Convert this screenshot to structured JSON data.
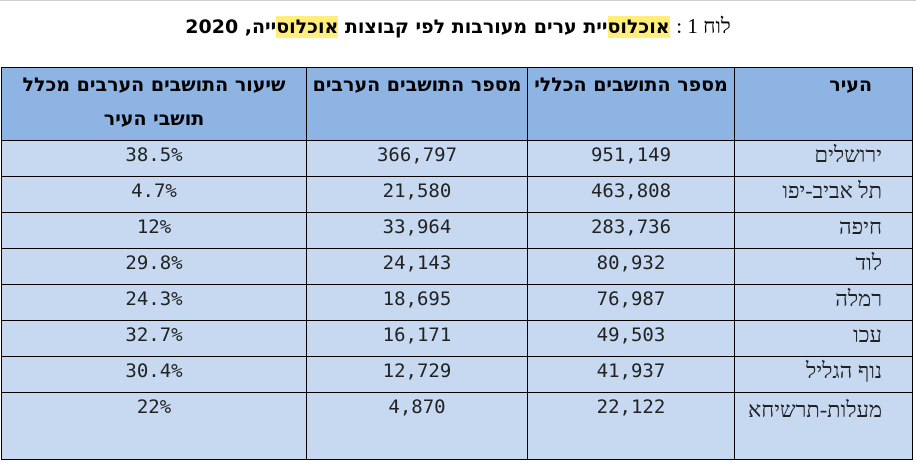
{
  "caption": {
    "label": "לוח 1 :",
    "word1_highlight": "אוכלוס",
    "word1_rest": "יית ערים מעורבות לפי קבוצות ",
    "word2_highlight": "אוכלוס",
    "word2_rest": "ייה, 2020",
    "highlight_color": "#ffef7a"
  },
  "table": {
    "headers": {
      "city": "העיר",
      "total": "מספר התושבים הכללי",
      "arab": "מספר התושבים הערבים",
      "rate": "שיעור התושבים הערבים מכלל תושבי העיר"
    },
    "rows": [
      {
        "city": "ירושלים",
        "total": "951,149",
        "arab": "366,797",
        "rate": "38.5%"
      },
      {
        "city": "תל אביב-יפו",
        "total": "463,808",
        "arab": "21,580",
        "rate": "4.7%"
      },
      {
        "city": "חיפה",
        "total": "283,736",
        "arab": "33,964",
        "rate": "12%"
      },
      {
        "city": "לוד",
        "total": "80,932",
        "arab": "24,143",
        "rate": "29.8%"
      },
      {
        "city": "רמלה",
        "total": "76,987",
        "arab": "18,695",
        "rate": "24.3%"
      },
      {
        "city": "עכו",
        "total": "49,503",
        "arab": "16,171",
        "rate": "32.7%"
      },
      {
        "city": "נוף הגליל",
        "total": "41,937",
        "arab": "12,729",
        "rate": "30.4%"
      },
      {
        "city": "מעלות-תרשיחא",
        "total": "22,122",
        "arab": "4,870",
        "rate": "22%"
      }
    ],
    "header_color": "#8eb4e3",
    "row_color": "#c6d9f1"
  }
}
